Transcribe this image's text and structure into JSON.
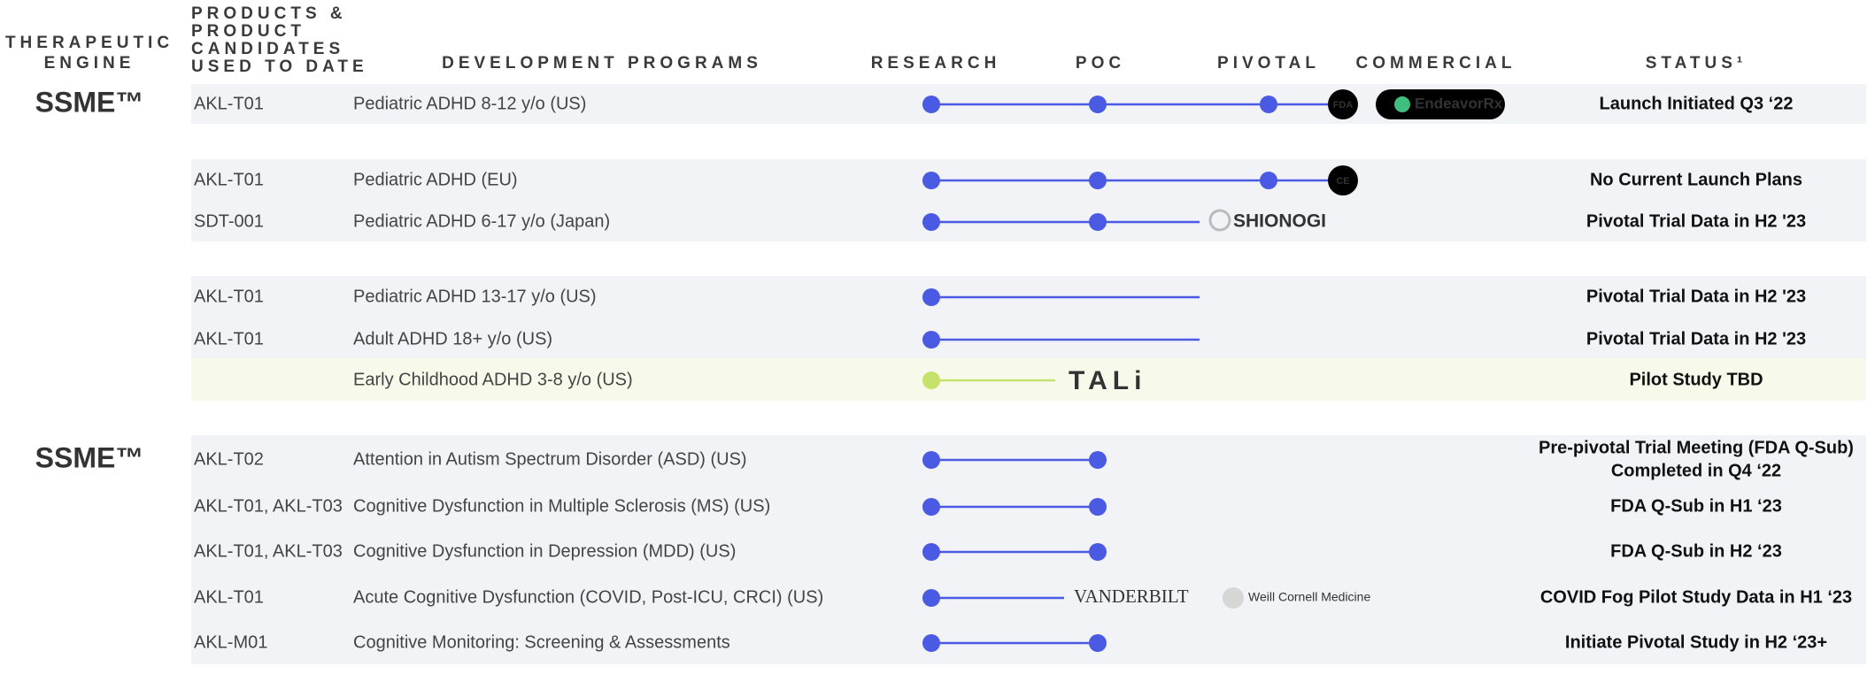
{
  "header": {
    "engine": [
      "THERAPEUTIC",
      "ENGINE"
    ],
    "products": [
      "PRODUCTS &",
      "PRODUCT",
      "CANDIDATES",
      "USED TO DATE"
    ],
    "programs": "DEVELOPMENT PROGRAMS",
    "stages": [
      "RESEARCH",
      "POC",
      "PIVOTAL",
      "COMMERCIAL"
    ],
    "status": "STATUS¹"
  },
  "rows": [
    {
      "engine": "SSME™",
      "product": "AKL-T01",
      "program": "Pediatric ADHD 8-12 y/o (US)",
      "partners": [
        "FDA",
        "EndeavorRx"
      ],
      "status": "Launch Initiated Q3 ‘22"
    },
    {
      "product": "AKL-T01",
      "program": "Pediatric ADHD (EU)",
      "partners": [
        "CE"
      ],
      "status": "No Current Launch Plans"
    },
    {
      "product": "SDT-001",
      "program": "Pediatric ADHD 6-17 y/o (Japan)",
      "partners": [
        "SHIONOGI"
      ],
      "status": "Pivotal Trial Data in H2 '23"
    },
    {
      "product": "AKL-T01",
      "program": "Pediatric ADHD 13-17 y/o (US)",
      "status": "Pivotal Trial Data in H2 '23"
    },
    {
      "product": "AKL-T01",
      "program": "Adult ADHD 18+ y/o (US)",
      "status": "Pivotal Trial Data in H2 '23"
    },
    {
      "program": "Early Childhood ADHD 3-8 y/o (US)",
      "partners": [
        "TALi"
      ],
      "status": "Pilot Study TBD"
    },
    {
      "engine": "SSME™",
      "product": "AKL-T02",
      "program": "Attention in Autism Spectrum Disorder (ASD) (US)",
      "status": [
        "Pre-pivotal Trial Meeting (FDA Q-Sub)",
        "Completed in Q4 ‘22"
      ]
    },
    {
      "product": "AKL-T01, AKL-T03",
      "program": "Cognitive Dysfunction in Multiple Sclerosis (MS) (US)",
      "status": "FDA Q-Sub in H1 ‘23"
    },
    {
      "product": "AKL-T01, AKL-T03",
      "program": "Cognitive Dysfunction in Depression (MDD) (US)",
      "status": "FDA Q-Sub in H2 ‘23"
    },
    {
      "product": "AKL-T01",
      "program": "Acute Cognitive Dysfunction (COVID, Post-ICU, CRCI) (US)",
      "partners": [
        "VANDERBILT",
        "Weill Cornell Medicine"
      ],
      "status": "COVID Fog Pilot Study Data in H1 ‘23"
    },
    {
      "product": "AKL-M01",
      "program": "Cognitive Monitoring: Screening & Assessments",
      "status": "Initiate Pivotal Study in H2 ‘23+"
    }
  ]
}
